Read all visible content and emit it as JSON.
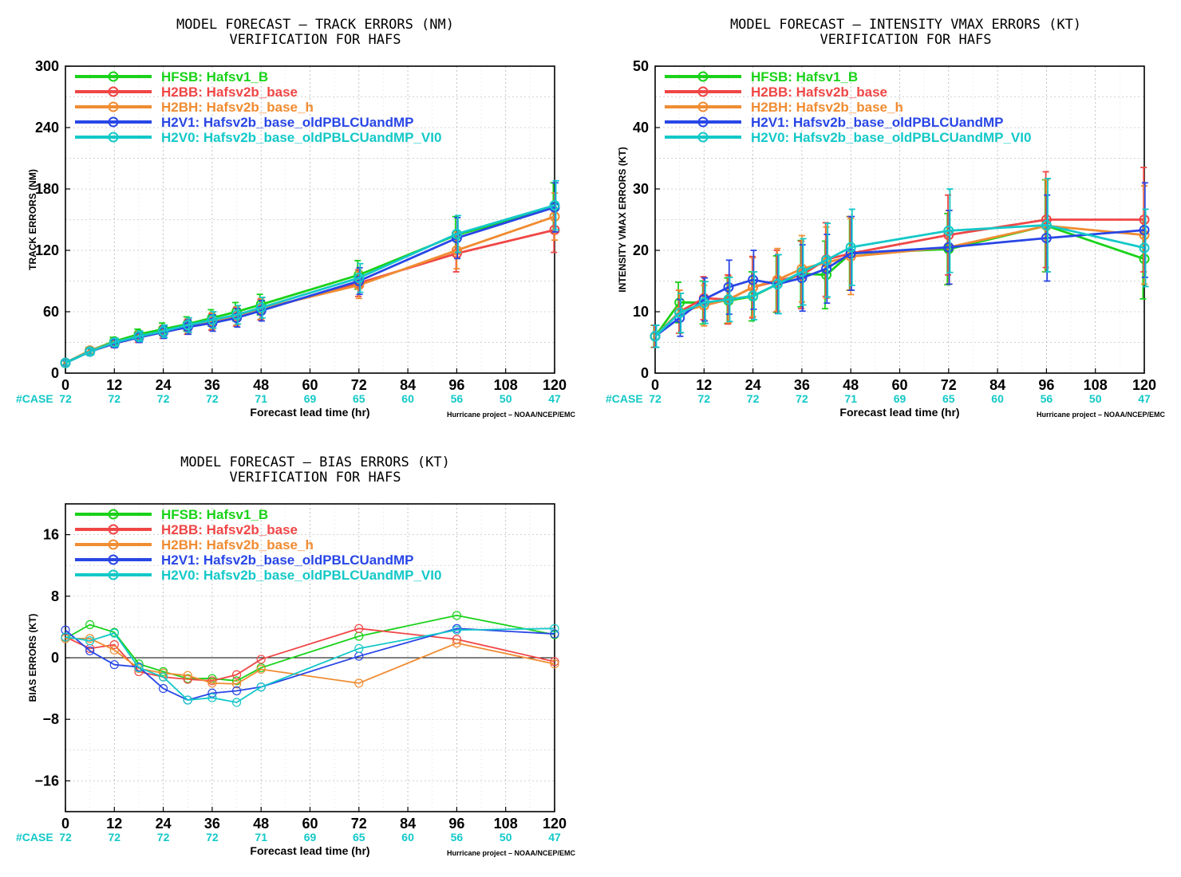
{
  "chart_data": [
    {
      "id": "track",
      "type": "line",
      "title": [
        "MODEL FORECAST – TRACK ERRORS (NM)",
        "VERIFICATION FOR HAFS"
      ],
      "xlabel": "Forecast lead time (hr)",
      "ylabel": "TRACK ERRORS (NM)",
      "credit": "Hurricane project – NOAA/NCEP/EMC",
      "case_label": "#CASE",
      "xlim": [
        0,
        120
      ],
      "ylim": [
        0,
        300
      ],
      "xticks": [
        0,
        12,
        24,
        36,
        48,
        60,
        72,
        84,
        96,
        108,
        120
      ],
      "yticks": [
        0,
        60,
        120,
        180,
        240,
        300
      ],
      "xtick_labels": [
        "0",
        "12",
        "24",
        "36",
        "48",
        "60",
        "72",
        "84",
        "96",
        "108",
        "120"
      ],
      "ytick_labels": [
        "0",
        "60",
        "120",
        "180",
        "240",
        "300"
      ],
      "case_x": [
        0,
        12,
        24,
        36,
        48,
        60,
        72,
        84,
        96,
        108,
        120
      ],
      "case_counts": [
        "72",
        "72",
        "72",
        "72",
        "71",
        "69",
        "65",
        "60",
        "56",
        "50",
        "47"
      ],
      "grid": true,
      "legend_position": "top-left",
      "error_bars": true,
      "zero_line": false,
      "x": [
        0,
        6,
        12,
        18,
        24,
        30,
        36,
        42,
        48,
        72,
        96,
        120
      ],
      "series": [
        {
          "name": "HFSB: Hafsv1_B",
          "color": "#19d219",
          "values": [
            10,
            22,
            31,
            38,
            43,
            48,
            54,
            60,
            67,
            96,
            135,
            162
          ],
          "err": [
            2,
            3,
            4,
            5,
            6,
            7,
            8,
            9,
            10,
            14,
            18,
            24
          ]
        },
        {
          "name": "H2BB: Hafsv2b_base",
          "color": "#f04646",
          "values": [
            10,
            21,
            29,
            35,
            40,
            45,
            50,
            55,
            62,
            88,
            117,
            140
          ],
          "err": [
            2,
            3,
            4,
            5,
            6,
            7,
            8,
            9,
            10,
            13,
            18,
            22
          ]
        },
        {
          "name": "H2BH: Hafsv2b_base_h",
          "color": "#f08c32",
          "values": [
            10,
            22,
            30,
            36,
            41,
            46,
            51,
            56,
            63,
            86,
            120,
            153
          ],
          "err": [
            2,
            3,
            4,
            5,
            6,
            7,
            8,
            9,
            10,
            13,
            18,
            23
          ]
        },
        {
          "name": "H2V1: Hafsv2b_base_oldPBLCUandMP",
          "color": "#2846e6",
          "values": [
            10,
            21,
            29,
            35,
            40,
            45,
            49,
            54,
            61,
            90,
            132,
            162
          ],
          "err": [
            2,
            3,
            4,
            5,
            6,
            7,
            8,
            9,
            10,
            13,
            20,
            24
          ]
        },
        {
          "name": "H2V0: Hafsv2b_base_oldPBLCUandMP_VI0",
          "color": "#14c8c8",
          "values": [
            10,
            21,
            30,
            36,
            41,
            47,
            52,
            57,
            64,
            93,
            136,
            164
          ],
          "err": [
            2,
            3,
            4,
            5,
            6,
            7,
            8,
            9,
            10,
            14,
            18,
            24
          ]
        }
      ]
    },
    {
      "id": "intensity",
      "type": "line",
      "title": [
        "MODEL FORECAST – INTENSITY VMAX ERRORS (KT)",
        "VERIFICATION FOR HAFS"
      ],
      "xlabel": "Forecast lead time (hr)",
      "ylabel": "INTENSITY VMAX ERRORS (KT)",
      "credit": "Hurricane project – NOAA/NCEP/EMC",
      "case_label": "#CASE",
      "xlim": [
        0,
        120
      ],
      "ylim": [
        0,
        50
      ],
      "xticks": [
        0,
        12,
        24,
        36,
        48,
        60,
        72,
        84,
        96,
        108,
        120
      ],
      "yticks": [
        0,
        10,
        20,
        30,
        40,
        50
      ],
      "xtick_labels": [
        "0",
        "12",
        "24",
        "36",
        "48",
        "60",
        "72",
        "84",
        "96",
        "108",
        "120"
      ],
      "ytick_labels": [
        "0",
        "10",
        "20",
        "30",
        "40",
        "50"
      ],
      "case_x": [
        0,
        12,
        24,
        36,
        48,
        60,
        72,
        84,
        96,
        108,
        120
      ],
      "case_counts": [
        "72",
        "72",
        "72",
        "72",
        "71",
        "69",
        "65",
        "60",
        "56",
        "50",
        "47"
      ],
      "grid": true,
      "legend_position": "top-left",
      "error_bars": true,
      "zero_line": false,
      "x": [
        0,
        6,
        12,
        18,
        24,
        30,
        36,
        42,
        48,
        72,
        96,
        120
      ],
      "series": [
        {
          "name": "HFSB: Hafsv1_B",
          "color": "#19d219",
          "values": [
            6,
            11.5,
            11.5,
            11.8,
            12.5,
            14.5,
            16.2,
            16,
            19.5,
            20.2,
            24,
            18.6
          ],
          "err": [
            1.8,
            3.3,
            3.5,
            3.7,
            4,
            4.6,
            5.4,
            5.5,
            6,
            5.8,
            7.5,
            6.5
          ]
        },
        {
          "name": "H2BB: Hafsv2b_base",
          "color": "#f04646",
          "values": [
            6,
            10,
            12.2,
            12,
            14,
            15,
            16,
            18.5,
            19.5,
            22.5,
            25,
            25
          ],
          "err": [
            1.8,
            3.5,
            3.5,
            4,
            5,
            5,
            5.5,
            6,
            6,
            6.5,
            7.8,
            8.5
          ]
        },
        {
          "name": "H2BH: Hafsv2b_base_h",
          "color": "#f08c32",
          "values": [
            6,
            10,
            11,
            12,
            14,
            15.2,
            17,
            18,
            19,
            20.5,
            24,
            22.5
          ],
          "err": [
            1.8,
            3.5,
            3.3,
            3.8,
            4.8,
            5.1,
            5.4,
            5.8,
            6.2,
            6,
            7.5,
            8
          ]
        },
        {
          "name": "H2V1: Hafsv2b_base_oldPBLCUandMP",
          "color": "#2846e6",
          "values": [
            6,
            9,
            12,
            14,
            15.2,
            14.5,
            15.5,
            17,
            19.5,
            20.5,
            22,
            23.3
          ],
          "err": [
            1.8,
            3,
            3.5,
            4.4,
            4.8,
            4.8,
            5.4,
            5.6,
            6,
            6,
            7,
            7.7
          ]
        },
        {
          "name": "H2V0: Hafsv2b_base_oldPBLCUandMP_VI0",
          "color": "#14c8c8",
          "values": [
            6,
            9.8,
            11.5,
            12,
            12.6,
            14.5,
            16.5,
            18.4,
            20.5,
            23.2,
            24.1,
            20.4
          ],
          "err": [
            1.8,
            3.2,
            3.4,
            3.6,
            3.9,
            4.8,
            5.4,
            6,
            6.2,
            6.8,
            7.6,
            6.3
          ]
        }
      ]
    },
    {
      "id": "bias",
      "type": "line",
      "title": [
        "MODEL FORECAST – BIAS ERRORS (KT)",
        "VERIFICATION FOR HAFS"
      ],
      "xlabel": "Forecast lead time (hr)",
      "ylabel": "BIAS ERRORS (KT)",
      "credit": "Hurricane project – NOAA/NCEP/EMC",
      "case_label": "#CASE",
      "xlim": [
        0,
        120
      ],
      "ylim": [
        -20,
        20
      ],
      "xticks": [
        0,
        12,
        24,
        36,
        48,
        60,
        72,
        84,
        96,
        108,
        120
      ],
      "yticks": [
        -16,
        -8,
        0,
        8,
        16
      ],
      "xtick_labels": [
        "0",
        "12",
        "24",
        "36",
        "48",
        "60",
        "72",
        "84",
        "96",
        "108",
        "120"
      ],
      "ytick_labels": [
        "−16",
        "−8",
        "0",
        "8",
        "16"
      ],
      "case_x": [
        0,
        12,
        24,
        36,
        48,
        60,
        72,
        84,
        96,
        108,
        120
      ],
      "case_counts": [
        "72",
        "72",
        "72",
        "72",
        "71",
        "69",
        "65",
        "60",
        "56",
        "50",
        "47"
      ],
      "grid": true,
      "legend_position": "top-left",
      "error_bars": false,
      "zero_line": true,
      "x": [
        0,
        6,
        12,
        18,
        24,
        30,
        36,
        42,
        48,
        72,
        96,
        120
      ],
      "series": [
        {
          "name": "HFSB: Hafsv1_B",
          "color": "#19d219",
          "values": [
            2.5,
            4.3,
            3.3,
            -0.8,
            -1.8,
            -2.7,
            -2.7,
            -3,
            -1.3,
            2.8,
            5.5,
            3
          ],
          "err": []
        },
        {
          "name": "H2BB: Hafsv2b_base",
          "color": "#f04646",
          "values": [
            2.7,
            1.2,
            1.7,
            -1.8,
            -2.5,
            -2.8,
            -3,
            -2.2,
            -0.2,
            3.8,
            2.4,
            -0.5
          ],
          "err": []
        },
        {
          "name": "H2BH: Hafsv2b_base_h",
          "color": "#f08c32",
          "values": [
            2.5,
            2.5,
            1,
            -1.4,
            -2,
            -2.3,
            -3.3,
            -3.4,
            -1.5,
            -3.3,
            1.9,
            -0.8
          ],
          "err": []
        },
        {
          "name": "H2V1: Hafsv2b_base_oldPBLCUandMP",
          "color": "#2846e6",
          "values": [
            3.6,
            0.9,
            -0.9,
            -1.2,
            -4,
            -5.5,
            -4.6,
            -4.3,
            -3.8,
            0.2,
            3.8,
            3.1
          ],
          "err": []
        },
        {
          "name": "H2V0: Hafsv2b_base_oldPBLCUandMP_VI0",
          "color": "#14c8c8",
          "values": [
            2.7,
            2.2,
            3.2,
            -1.3,
            -2.5,
            -5.5,
            -5.2,
            -5.8,
            -3.8,
            1.2,
            3.6,
            3.8
          ],
          "err": []
        }
      ]
    }
  ]
}
